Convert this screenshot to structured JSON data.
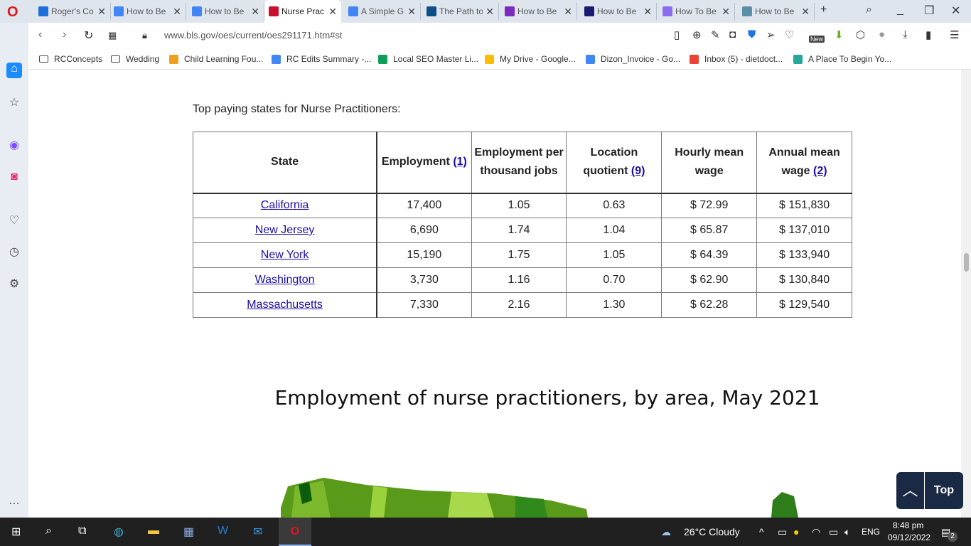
{
  "browser": {
    "tabs": [
      {
        "title": "Roger's Co",
        "color": "#1e6fd9"
      },
      {
        "title": "How to Be",
        "color": "#4285f4"
      },
      {
        "title": "How to Be",
        "color": "#4285f4"
      },
      {
        "title": "Nurse Prac",
        "color": "#c8102e",
        "active": true
      },
      {
        "title": "A Simple G",
        "color": "#4285f4"
      },
      {
        "title": "The Path to",
        "color": "#0b4f8a"
      },
      {
        "title": "How to Be",
        "color": "#7b2cbf"
      },
      {
        "title": "How to Be",
        "color": "#1a1a6e"
      },
      {
        "title": "How To Be",
        "color": "#8a6cf0"
      },
      {
        "title": "How to Be",
        "color": "#5a8fa8"
      }
    ],
    "url": "www.bls.gov/oes/current/oes291171.htm#st",
    "new_badge": "New",
    "bookmarks": [
      "RCConcepts",
      "Wedding",
      "Child Learning Fou...",
      "RC Edits Summary -...",
      "Local SEO Master Li...",
      "My Drive - Google...",
      "Dizon_Invoice - Go...",
      "Inbox (5) - dietdoct...",
      "A Place To Begin Yo..."
    ]
  },
  "page": {
    "caption": "Top paying states for Nurse Practitioners:",
    "headers": [
      {
        "text": "State"
      },
      {
        "text": "Employment ",
        "link": "(1)"
      },
      {
        "text": "Employment per thousand jobs"
      },
      {
        "text": "Location quotient ",
        "link": "(9)"
      },
      {
        "text": "Hourly mean wage"
      },
      {
        "text": "Annual mean wage ",
        "link": "(2)"
      }
    ],
    "rows": [
      [
        "California",
        "17,400",
        "1.05",
        "0.63",
        "$ 72.99",
        "$ 151,830"
      ],
      [
        "New Jersey",
        "6,690",
        "1.74",
        "1.04",
        "$ 65.87",
        "$ 137,010"
      ],
      [
        "New York",
        "15,190",
        "1.75",
        "1.05",
        "$ 64.39",
        "$ 133,940"
      ],
      [
        "Washington",
        "3,730",
        "1.16",
        "0.70",
        "$ 62.90",
        "$ 130,840"
      ],
      [
        "Massachusetts",
        "7,330",
        "2.16",
        "1.30",
        "$ 62.28",
        "$ 129,540"
      ]
    ],
    "map_title": "Employment of nurse practitioners, by area, May 2021",
    "top_label": "Top"
  },
  "taskbar": {
    "weather": "26°C  Cloudy",
    "lang": "ENG",
    "time": "8:48 pm",
    "date": "09/12/2022",
    "notifications": "2"
  }
}
